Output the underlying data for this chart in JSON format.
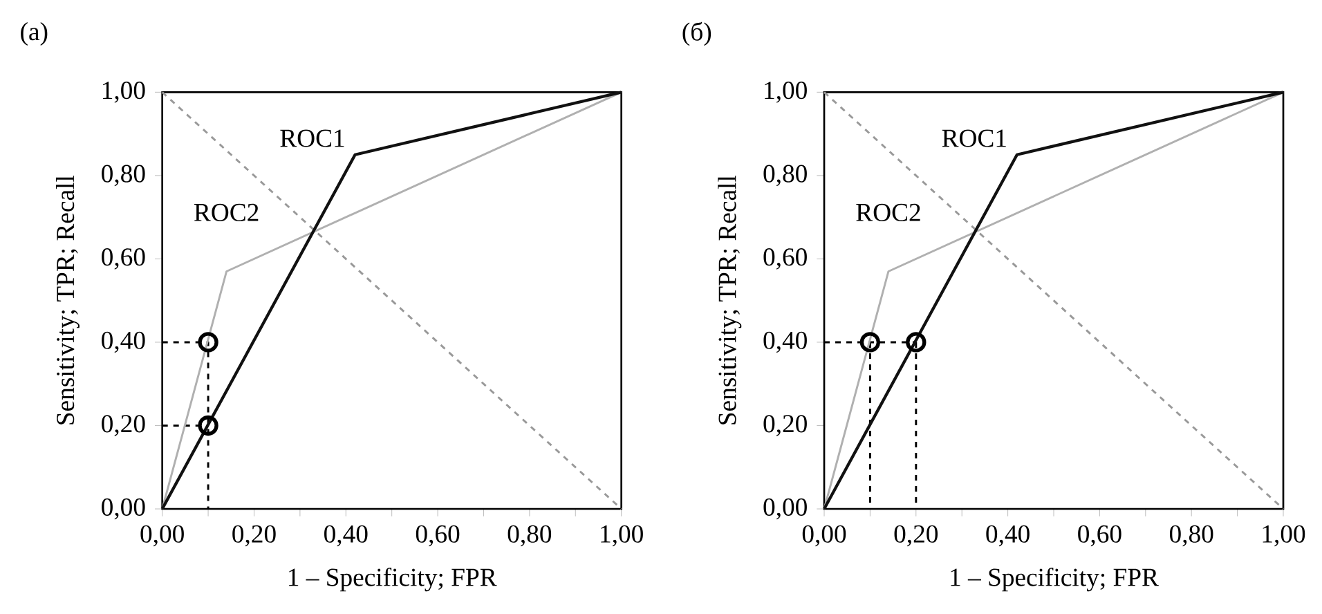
{
  "chart_data": [
    {
      "type": "line",
      "title": "(a)",
      "xlabel": "1 – Specificity; FPR",
      "ylabel": "Sensitivity; TPR; Recall",
      "xlim": [
        0,
        1
      ],
      "ylim": [
        0,
        1
      ],
      "xticks": [
        {
          "value": 0,
          "label": "0,00"
        },
        {
          "value": 0.1,
          "label": null
        },
        {
          "value": 0.2,
          "label": "0,20"
        },
        {
          "value": 0.3,
          "label": null
        },
        {
          "value": 0.4,
          "label": "0,40"
        },
        {
          "value": 0.5,
          "label": null
        },
        {
          "value": 0.6,
          "label": "0,60"
        },
        {
          "value": 0.7,
          "label": null
        },
        {
          "value": 0.8,
          "label": "0,80"
        },
        {
          "value": 0.9,
          "label": null
        },
        {
          "value": 1,
          "label": "1,00"
        }
      ],
      "yticks": [
        {
          "value": 0,
          "label": "0,00"
        },
        {
          "value": 0.2,
          "label": "0,20"
        },
        {
          "value": 0.4,
          "label": "0,40"
        },
        {
          "value": 0.6,
          "label": "0,60"
        },
        {
          "value": 0.8,
          "label": "0,80"
        },
        {
          "value": 1,
          "label": "1,00"
        }
      ],
      "series": [
        {
          "color": "#000000",
          "x": [
            0,
            0.1,
            0.1
          ],
          "values": [
            0.4,
            0.4,
            0
          ],
          "line_style": "dashed"
        },
        {
          "color": "#000000",
          "x": [
            0,
            0.1
          ],
          "values": [
            0.2,
            0.2
          ],
          "line_style": "dashed"
        },
        {
          "color": "#999999",
          "x": [
            0,
            1
          ],
          "values": [
            1,
            0
          ],
          "line_style": "dashed"
        },
        {
          "name": "ROC2",
          "color": "#b0b0b0",
          "x": [
            0,
            0.14,
            1
          ],
          "values": [
            0,
            0.57,
            1
          ],
          "line_style": "solid"
        },
        {
          "name": "ROC1",
          "color": "#111111",
          "x": [
            0,
            0.42,
            1
          ],
          "values": [
            0,
            0.85,
            1
          ],
          "line_style": "solid"
        },
        {
          "type": "scatter",
          "color": "#000000",
          "x": [
            0.1,
            0.1
          ],
          "values": [
            0.4,
            0.2
          ],
          "marker": "circle"
        }
      ]
    },
    {
      "type": "line",
      "title": "(б)",
      "xlabel": "1 – Specificity; FPR",
      "ylabel": "Sensitivity; TPR; Recall",
      "xlim": [
        0,
        1
      ],
      "ylim": [
        0,
        1
      ],
      "xticks": [
        {
          "value": 0,
          "label": "0,00"
        },
        {
          "value": 0.1,
          "label": null
        },
        {
          "value": 0.2,
          "label": "0,20"
        },
        {
          "value": 0.3,
          "label": null
        },
        {
          "value": 0.4,
          "label": "0,40"
        },
        {
          "value": 0.5,
          "label": null
        },
        {
          "value": 0.6,
          "label": "0,60"
        },
        {
          "value": 0.7,
          "label": null
        },
        {
          "value": 0.8,
          "label": "0,80"
        },
        {
          "value": 0.9,
          "label": null
        },
        {
          "value": 1,
          "label": "1,00"
        }
      ],
      "yticks": [
        {
          "value": 0,
          "label": "0,00"
        },
        {
          "value": 0.2,
          "label": "0,20"
        },
        {
          "value": 0.4,
          "label": "0,40"
        },
        {
          "value": 0.6,
          "label": "0,60"
        },
        {
          "value": 0.8,
          "label": "0,80"
        },
        {
          "value": 1,
          "label": "1,00"
        }
      ],
      "series": [
        {
          "color": "#000000",
          "x": [
            0,
            0.2
          ],
          "values": [
            0.4,
            0.4
          ],
          "line_style": "dashed"
        },
        {
          "color": "#000000",
          "x": [
            0.1,
            0.1
          ],
          "values": [
            0.4,
            0
          ],
          "line_style": "dashed"
        },
        {
          "color": "#000000",
          "x": [
            0.2,
            0.2
          ],
          "values": [
            0.4,
            0
          ],
          "line_style": "dashed"
        },
        {
          "color": "#999999",
          "x": [
            0,
            1
          ],
          "values": [
            1,
            0
          ],
          "line_style": "dashed"
        },
        {
          "name": "ROC2",
          "color": "#b0b0b0",
          "x": [
            0,
            0.14,
            1
          ],
          "values": [
            0,
            0.57,
            1
          ],
          "line_style": "solid"
        },
        {
          "name": "ROC1",
          "color": "#111111",
          "x": [
            0,
            0.42,
            1
          ],
          "values": [
            0,
            0.85,
            1
          ],
          "line_style": "solid"
        },
        {
          "type": "scatter",
          "color": "#000000",
          "x": [
            0.1,
            0.2
          ],
          "values": [
            0.4,
            0.4
          ],
          "marker": "circle"
        }
      ]
    }
  ]
}
